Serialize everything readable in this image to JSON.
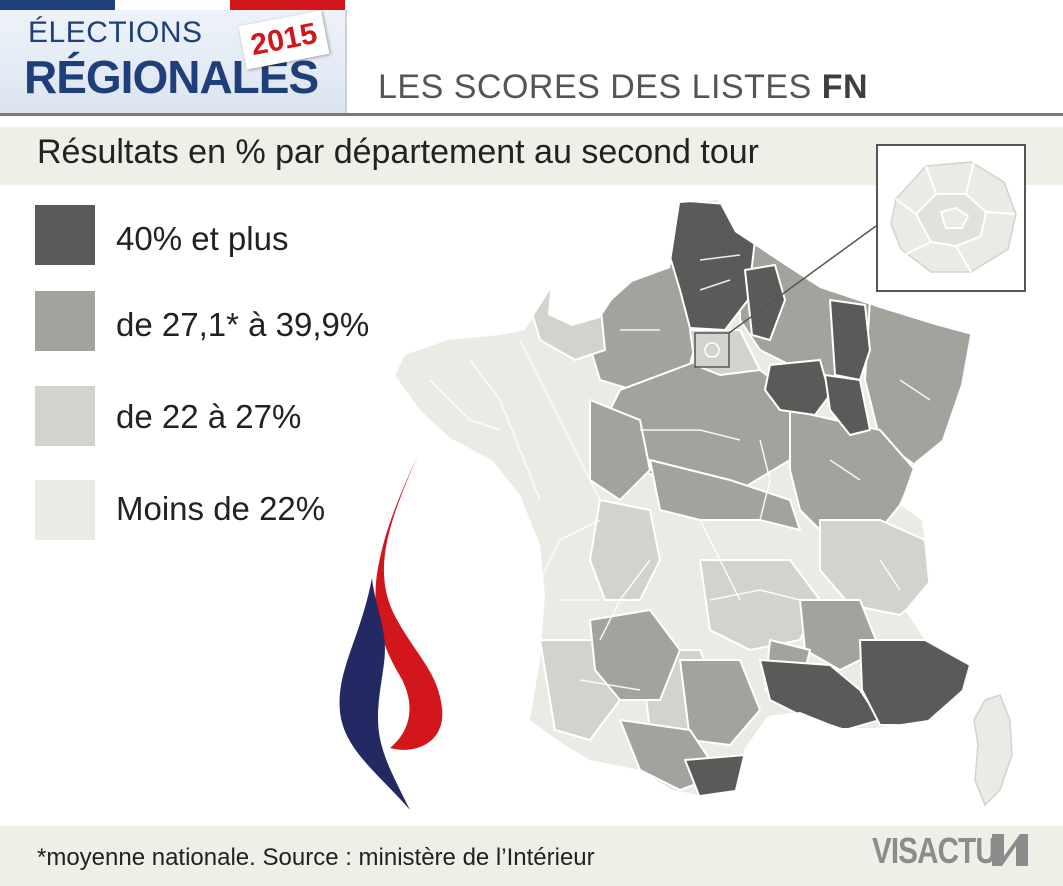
{
  "header": {
    "logo_line1": "ÉLECTIONS",
    "logo_line2": "RÉGIONALES",
    "year": "2015",
    "subtitle_prefix": "LES SCORES DES LISTES ",
    "subtitle_bold": "FN",
    "flag_colors": [
      "#1f3f7a",
      "#ffffff",
      "#d3151c"
    ]
  },
  "map_caption": "Résultats en % par département au second tour",
  "legend": [
    {
      "label": "40% et plus",
      "color": "#5a5a58"
    },
    {
      "label": "de 27,1* à 39,9%",
      "color": "#a3a29d"
    },
    {
      "label": "de 22 à 27%",
      "color": "#d3d2cc"
    },
    {
      "label": "Moins de 22%",
      "color": "#ebeae4"
    }
  ],
  "inset_icon": "paris-region-inset",
  "party_logo": "flame-icon",
  "footer": {
    "note": "*moyenne nationale. Source : ministère de l’Intérieur",
    "brand": "VISACTU"
  }
}
